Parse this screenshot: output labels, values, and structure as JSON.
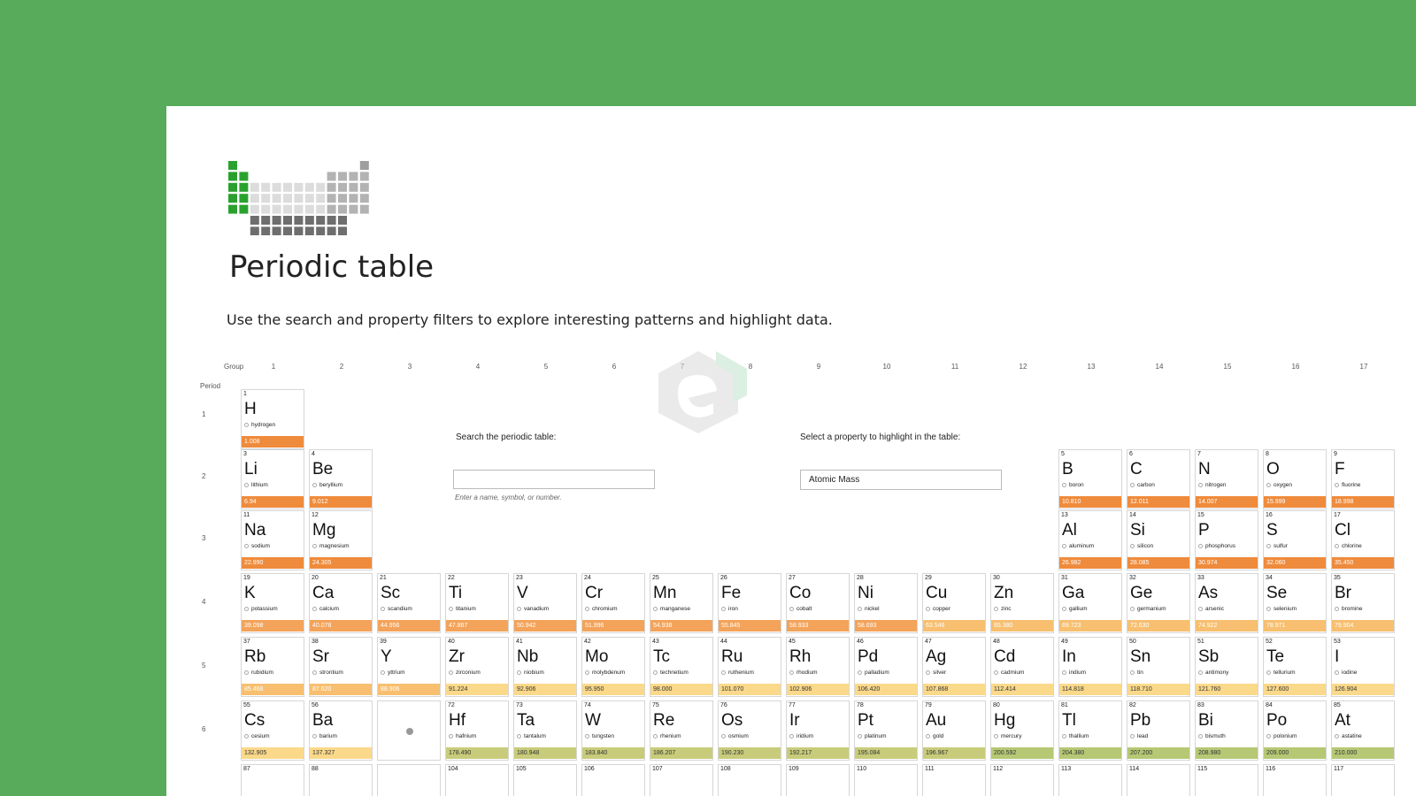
{
  "header": {
    "title": "Periodic table",
    "subtitle": "Use the search and property filters to explore interesting patterns and highlight data."
  },
  "axes": {
    "group_label": "Group",
    "period_label": "Period",
    "groups": [
      "1",
      "2",
      "3",
      "4",
      "5",
      "6",
      "7",
      "8",
      "9",
      "10",
      "11",
      "12",
      "13",
      "14",
      "15",
      "16",
      "17"
    ],
    "periods": [
      "1",
      "2",
      "3",
      "4",
      "5",
      "6"
    ]
  },
  "search": {
    "label": "Search the periodic table:",
    "value": "",
    "hint": "Enter a name, symbol, or number."
  },
  "property": {
    "label": "Select a property to highlight in the table:",
    "selected": "Atomic Mass"
  },
  "colors": {
    "background": "#57ab5a",
    "logo_accent": "#2aa12f",
    "mass_scale": [
      "#ef8b3c",
      "#f3a35a",
      "#f7bf6f",
      "#fbd98a",
      "#c8cc7a",
      "#b6c874"
    ]
  },
  "elements": [
    {
      "number": "1",
      "symbol": "H",
      "name": "hydrogen",
      "mass": "1.008",
      "group": 1,
      "period": 1,
      "tone": 0
    },
    {
      "number": "3",
      "symbol": "Li",
      "name": "lithium",
      "mass": "6.94",
      "group": 1,
      "period": 2,
      "tone": 0
    },
    {
      "number": "4",
      "symbol": "Be",
      "name": "beryllium",
      "mass": "9.012",
      "group": 2,
      "period": 2,
      "tone": 0
    },
    {
      "number": "5",
      "symbol": "B",
      "name": "boron",
      "mass": "10.810",
      "group": 13,
      "period": 2,
      "tone": 0
    },
    {
      "number": "6",
      "symbol": "C",
      "name": "carbon",
      "mass": "12.011",
      "group": 14,
      "period": 2,
      "tone": 0
    },
    {
      "number": "7",
      "symbol": "N",
      "name": "nitrogen",
      "mass": "14.007",
      "group": 15,
      "period": 2,
      "tone": 0
    },
    {
      "number": "8",
      "symbol": "O",
      "name": "oxygen",
      "mass": "15.999",
      "group": 16,
      "period": 2,
      "tone": 0
    },
    {
      "number": "9",
      "symbol": "F",
      "name": "fluorine",
      "mass": "18.998",
      "group": 17,
      "period": 2,
      "tone": 0
    },
    {
      "number": "11",
      "symbol": "Na",
      "name": "sodium",
      "mass": "22.990",
      "group": 1,
      "period": 3,
      "tone": 0
    },
    {
      "number": "12",
      "symbol": "Mg",
      "name": "magnesium",
      "mass": "24.305",
      "group": 2,
      "period": 3,
      "tone": 0
    },
    {
      "number": "13",
      "symbol": "Al",
      "name": "aluminum",
      "mass": "26.982",
      "group": 13,
      "period": 3,
      "tone": 0
    },
    {
      "number": "14",
      "symbol": "Si",
      "name": "silicon",
      "mass": "28.085",
      "group": 14,
      "period": 3,
      "tone": 0
    },
    {
      "number": "15",
      "symbol": "P",
      "name": "phosphorus",
      "mass": "30.974",
      "group": 15,
      "period": 3,
      "tone": 0
    },
    {
      "number": "16",
      "symbol": "S",
      "name": "sulfur",
      "mass": "32.060",
      "group": 16,
      "period": 3,
      "tone": 0
    },
    {
      "number": "17",
      "symbol": "Cl",
      "name": "chlorine",
      "mass": "35.450",
      "group": 17,
      "period": 3,
      "tone": 0
    },
    {
      "number": "19",
      "symbol": "K",
      "name": "potassium",
      "mass": "39.098",
      "group": 1,
      "period": 4,
      "tone": 1
    },
    {
      "number": "20",
      "symbol": "Ca",
      "name": "calcium",
      "mass": "40.078",
      "group": 2,
      "period": 4,
      "tone": 1
    },
    {
      "number": "21",
      "symbol": "Sc",
      "name": "scandium",
      "mass": "44.956",
      "group": 3,
      "period": 4,
      "tone": 1
    },
    {
      "number": "22",
      "symbol": "Ti",
      "name": "titanium",
      "mass": "47.867",
      "group": 4,
      "period": 4,
      "tone": 1
    },
    {
      "number": "23",
      "symbol": "V",
      "name": "vanadium",
      "mass": "50.942",
      "group": 5,
      "period": 4,
      "tone": 1
    },
    {
      "number": "24",
      "symbol": "Cr",
      "name": "chromium",
      "mass": "51.996",
      "group": 6,
      "period": 4,
      "tone": 1
    },
    {
      "number": "25",
      "symbol": "Mn",
      "name": "manganese",
      "mass": "54.938",
      "group": 7,
      "period": 4,
      "tone": 1
    },
    {
      "number": "26",
      "symbol": "Fe",
      "name": "iron",
      "mass": "55.845",
      "group": 8,
      "period": 4,
      "tone": 1
    },
    {
      "number": "27",
      "symbol": "Co",
      "name": "cobalt",
      "mass": "58.933",
      "group": 9,
      "period": 4,
      "tone": 1
    },
    {
      "number": "28",
      "symbol": "Ni",
      "name": "nickel",
      "mass": "58.693",
      "group": 10,
      "period": 4,
      "tone": 1
    },
    {
      "number": "29",
      "symbol": "Cu",
      "name": "copper",
      "mass": "63.546",
      "group": 11,
      "period": 4,
      "tone": 2
    },
    {
      "number": "30",
      "symbol": "Zn",
      "name": "zinc",
      "mass": "65.380",
      "group": 12,
      "period": 4,
      "tone": 2
    },
    {
      "number": "31",
      "symbol": "Ga",
      "name": "gallium",
      "mass": "69.723",
      "group": 13,
      "period": 4,
      "tone": 2
    },
    {
      "number": "32",
      "symbol": "Ge",
      "name": "germanium",
      "mass": "72.630",
      "group": 14,
      "period": 4,
      "tone": 2
    },
    {
      "number": "33",
      "symbol": "As",
      "name": "arsenic",
      "mass": "74.922",
      "group": 15,
      "period": 4,
      "tone": 2
    },
    {
      "number": "34",
      "symbol": "Se",
      "name": "selenium",
      "mass": "78.971",
      "group": 16,
      "period": 4,
      "tone": 2
    },
    {
      "number": "35",
      "symbol": "Br",
      "name": "bromine",
      "mass": "79.904",
      "group": 17,
      "period": 4,
      "tone": 2
    },
    {
      "number": "37",
      "symbol": "Rb",
      "name": "rubidium",
      "mass": "85.468",
      "group": 1,
      "period": 5,
      "tone": 2
    },
    {
      "number": "38",
      "symbol": "Sr",
      "name": "strontium",
      "mass": "87.620",
      "group": 2,
      "period": 5,
      "tone": 2
    },
    {
      "number": "39",
      "symbol": "Y",
      "name": "yttrium",
      "mass": "88.906",
      "group": 3,
      "period": 5,
      "tone": 2
    },
    {
      "number": "40",
      "symbol": "Zr",
      "name": "zirconium",
      "mass": "91.224",
      "group": 4,
      "period": 5,
      "tone": 3
    },
    {
      "number": "41",
      "symbol": "Nb",
      "name": "niobium",
      "mass": "92.906",
      "group": 5,
      "period": 5,
      "tone": 3
    },
    {
      "number": "42",
      "symbol": "Mo",
      "name": "molybdenum",
      "mass": "95.950",
      "group": 6,
      "period": 5,
      "tone": 3
    },
    {
      "number": "43",
      "symbol": "Tc",
      "name": "technetium",
      "mass": "98.000",
      "group": 7,
      "period": 5,
      "tone": 3
    },
    {
      "number": "44",
      "symbol": "Ru",
      "name": "ruthenium",
      "mass": "101.070",
      "group": 8,
      "period": 5,
      "tone": 3
    },
    {
      "number": "45",
      "symbol": "Rh",
      "name": "rhodium",
      "mass": "102.906",
      "group": 9,
      "period": 5,
      "tone": 3
    },
    {
      "number": "46",
      "symbol": "Pd",
      "name": "palladium",
      "mass": "106.420",
      "group": 10,
      "period": 5,
      "tone": 3
    },
    {
      "number": "47",
      "symbol": "Ag",
      "name": "silver",
      "mass": "107.868",
      "group": 11,
      "period": 5,
      "tone": 3
    },
    {
      "number": "48",
      "symbol": "Cd",
      "name": "cadmium",
      "mass": "112.414",
      "group": 12,
      "period": 5,
      "tone": 3
    },
    {
      "number": "49",
      "symbol": "In",
      "name": "indium",
      "mass": "114.818",
      "group": 13,
      "period": 5,
      "tone": 3
    },
    {
      "number": "50",
      "symbol": "Sn",
      "name": "tin",
      "mass": "118.710",
      "group": 14,
      "period": 5,
      "tone": 3
    },
    {
      "number": "51",
      "symbol": "Sb",
      "name": "antimony",
      "mass": "121.760",
      "group": 15,
      "period": 5,
      "tone": 3
    },
    {
      "number": "52",
      "symbol": "Te",
      "name": "tellurium",
      "mass": "127.600",
      "group": 16,
      "period": 5,
      "tone": 3
    },
    {
      "number": "53",
      "symbol": "I",
      "name": "iodine",
      "mass": "126.904",
      "group": 17,
      "period": 5,
      "tone": 3
    },
    {
      "number": "55",
      "symbol": "Cs",
      "name": "cesium",
      "mass": "132.905",
      "group": 1,
      "period": 6,
      "tone": 3
    },
    {
      "number": "56",
      "symbol": "Ba",
      "name": "barium",
      "mass": "137.327",
      "group": 2,
      "period": 6,
      "tone": 3
    },
    {
      "number": "72",
      "symbol": "Hf",
      "name": "hafnium",
      "mass": "178.490",
      "group": 4,
      "period": 6,
      "tone": 4
    },
    {
      "number": "73",
      "symbol": "Ta",
      "name": "tantalum",
      "mass": "180.948",
      "group": 5,
      "period": 6,
      "tone": 4
    },
    {
      "number": "74",
      "symbol": "W",
      "name": "tungsten",
      "mass": "183.840",
      "group": 6,
      "period": 6,
      "tone": 4
    },
    {
      "number": "75",
      "symbol": "Re",
      "name": "rhenium",
      "mass": "186.207",
      "group": 7,
      "period": 6,
      "tone": 4
    },
    {
      "number": "76",
      "symbol": "Os",
      "name": "osmium",
      "mass": "190.230",
      "group": 8,
      "period": 6,
      "tone": 4
    },
    {
      "number": "77",
      "symbol": "Ir",
      "name": "iridium",
      "mass": "192.217",
      "group": 9,
      "period": 6,
      "tone": 4
    },
    {
      "number": "78",
      "symbol": "Pt",
      "name": "platinum",
      "mass": "195.084",
      "group": 10,
      "period": 6,
      "tone": 4
    },
    {
      "number": "79",
      "symbol": "Au",
      "name": "gold",
      "mass": "196.967",
      "group": 11,
      "period": 6,
      "tone": 4
    },
    {
      "number": "80",
      "symbol": "Hg",
      "name": "mercury",
      "mass": "200.592",
      "group": 12,
      "period": 6,
      "tone": 5
    },
    {
      "number": "81",
      "symbol": "Tl",
      "name": "thallium",
      "mass": "204.380",
      "group": 13,
      "period": 6,
      "tone": 5
    },
    {
      "number": "82",
      "symbol": "Pb",
      "name": "lead",
      "mass": "207.200",
      "group": 14,
      "period": 6,
      "tone": 5
    },
    {
      "number": "83",
      "symbol": "Bi",
      "name": "bismuth",
      "mass": "208.980",
      "group": 15,
      "period": 6,
      "tone": 5
    },
    {
      "number": "84",
      "symbol": "Po",
      "name": "polonium",
      "mass": "209.000",
      "group": 16,
      "period": 6,
      "tone": 5
    },
    {
      "number": "85",
      "symbol": "At",
      "name": "astatine",
      "mass": "210.000",
      "group": 17,
      "period": 6,
      "tone": 5
    }
  ],
  "placeholder_cell": {
    "group": 3,
    "period": 6
  },
  "period7_numbers": [
    {
      "number": "87",
      "group": 1
    },
    {
      "number": "88",
      "group": 2
    },
    {
      "number": "104",
      "group": 4
    },
    {
      "number": "105",
      "group": 5
    },
    {
      "number": "106",
      "group": 6
    },
    {
      "number": "107",
      "group": 7
    },
    {
      "number": "108",
      "group": 8
    },
    {
      "number": "109",
      "group": 9
    },
    {
      "number": "110",
      "group": 10
    },
    {
      "number": "111",
      "group": 11
    },
    {
      "number": "112",
      "group": 12
    },
    {
      "number": "113",
      "group": 13
    },
    {
      "number": "114",
      "group": 14
    },
    {
      "number": "115",
      "group": 15
    },
    {
      "number": "116",
      "group": 16
    },
    {
      "number": "117",
      "group": 17
    }
  ]
}
